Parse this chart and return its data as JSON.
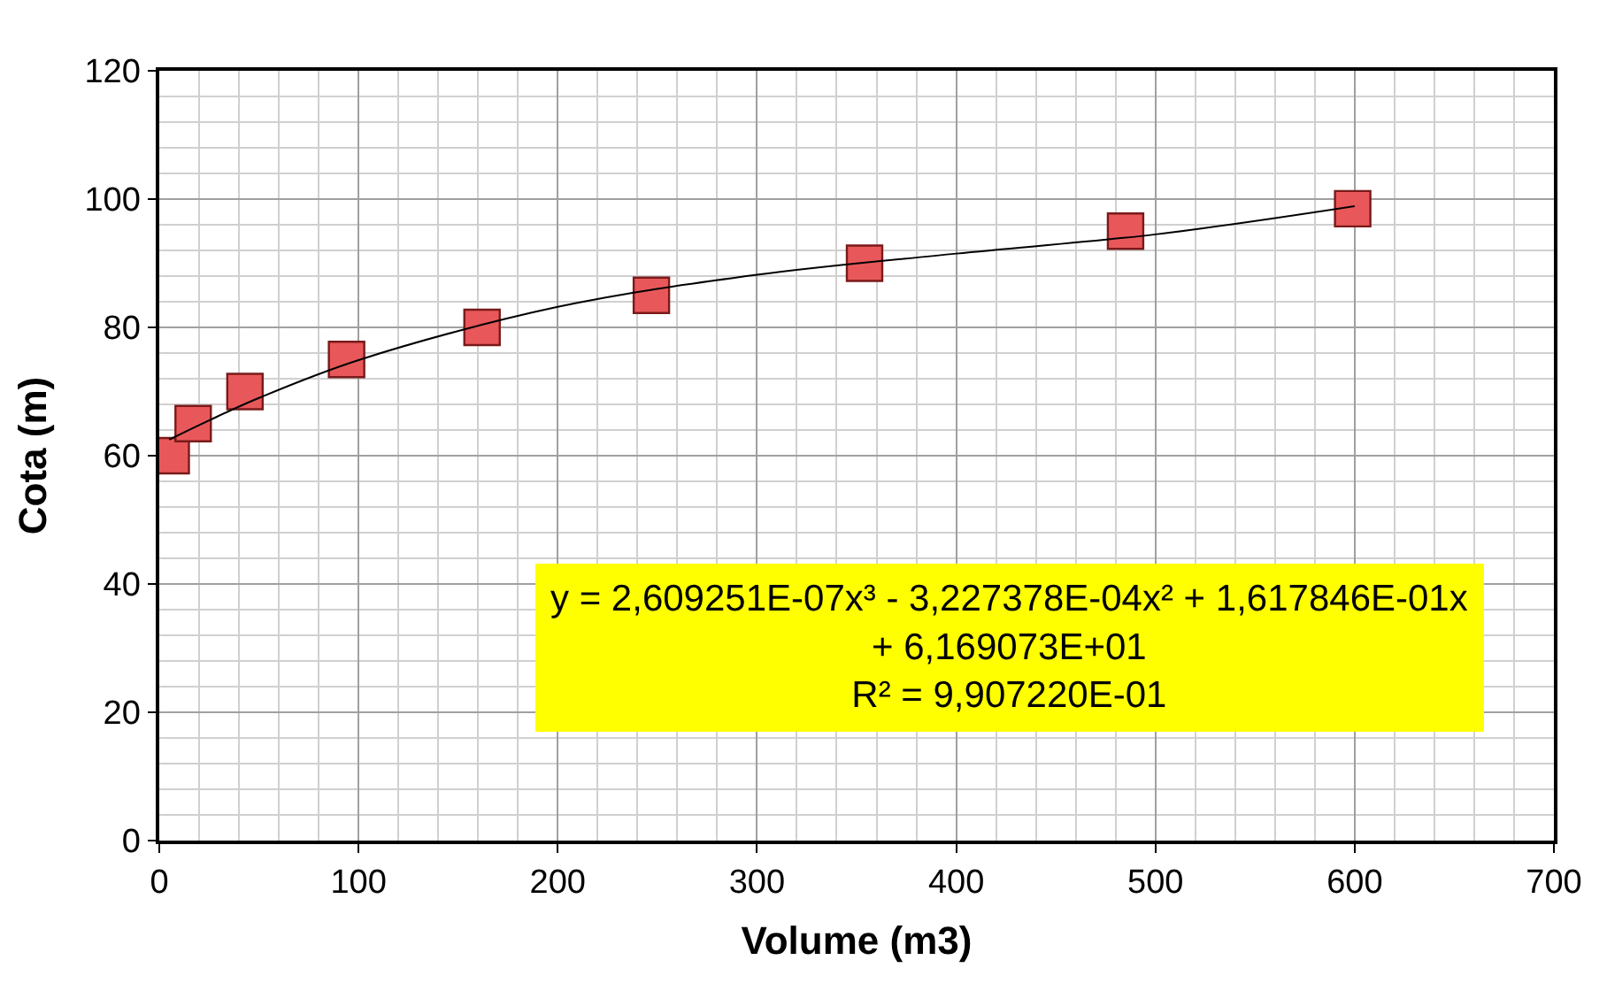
{
  "chart_data": {
    "type": "scatter",
    "xlabel": "Volume (m3)",
    "ylabel": "Cota (m)",
    "xlim": [
      0,
      700
    ],
    "ylim": [
      0,
      120
    ],
    "xticks": [
      0,
      100,
      200,
      300,
      400,
      500,
      600,
      700
    ],
    "yticks": [
      0,
      20,
      40,
      60,
      80,
      100,
      120
    ],
    "grid": true,
    "legend": false,
    "marker": "square",
    "series": [
      {
        "color": "#e8585a",
        "x": [
          6,
          17,
          43,
          94,
          162,
          247,
          354,
          485,
          599
        ],
        "values": [
          60,
          65,
          70,
          75,
          80,
          85,
          90,
          95,
          98.5
        ]
      },
      {
        "type": "line",
        "color": "#000000",
        "marker": "none",
        "line_style": "solid",
        "x": [
          5,
          25,
          50,
          100,
          200,
          300,
          400,
          500,
          600
        ],
        "values": [
          62.5,
          65.5,
          69,
          74.9,
          83.2,
          88.2,
          91.5,
          94.5,
          98.9
        ]
      }
    ],
    "annotations": [
      "y = 2,609251E-07x³ - 3,227378E-04x² + 1,617846E-01x\n+ 6,169073E+01\nR² = 9,907220E-01"
    ]
  }
}
